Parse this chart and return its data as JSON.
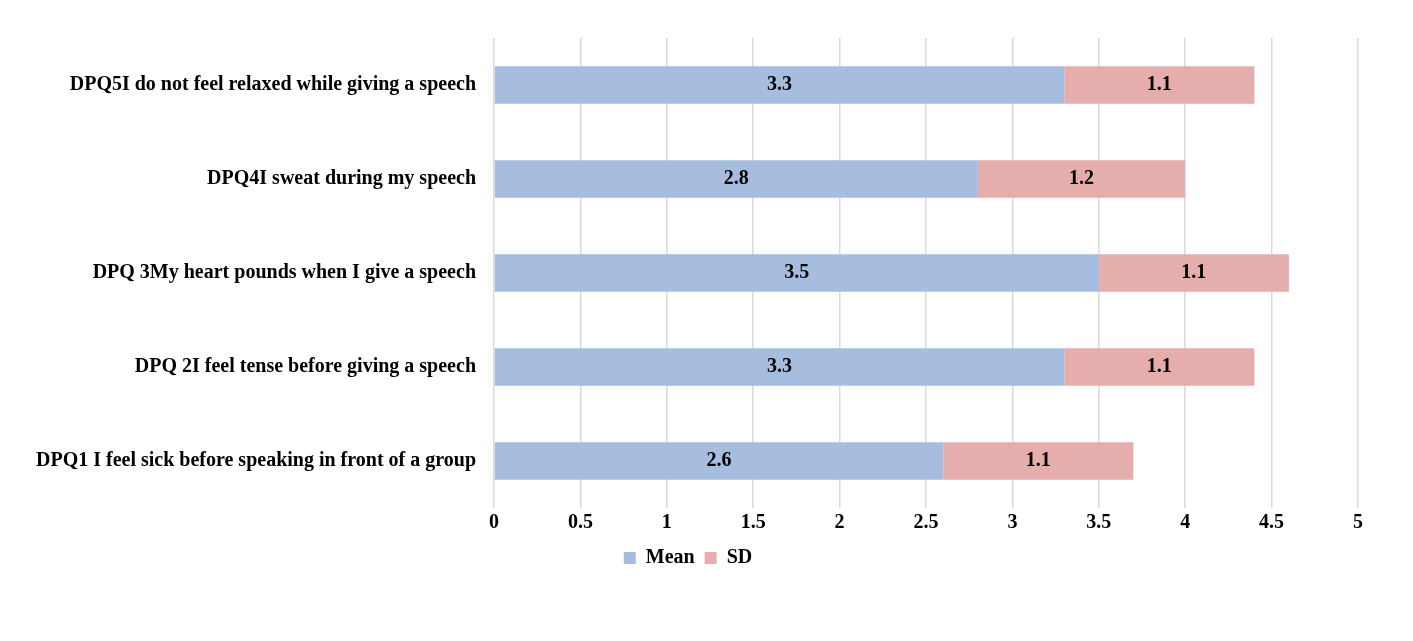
{
  "chart_data": {
    "type": "bar",
    "orientation": "horizontal",
    "stacked": true,
    "categories": [
      "DPQ5I do not feel relaxed while giving a speech",
      "DPQ4I sweat during my speech",
      "DPQ 3My heart pounds when I give a speech",
      "DPQ 2I feel tense before giving a speech",
      "DPQ1 I feel sick before speaking in front of a group"
    ],
    "series": [
      {
        "name": "Mean",
        "color": "#a6bddf",
        "values": [
          3.3,
          2.8,
          3.5,
          3.3,
          2.6
        ]
      },
      {
        "name": "SD",
        "color": "#e6adad",
        "values": [
          1.1,
          1.2,
          1.1,
          1.1,
          1.1
        ]
      }
    ],
    "xlim": [
      0,
      5
    ],
    "xticks": [
      0,
      0.5,
      1,
      1.5,
      2,
      2.5,
      3,
      3.5,
      4,
      4.5,
      5
    ],
    "grid": "x",
    "legend": "bottom",
    "data_labels": true
  }
}
